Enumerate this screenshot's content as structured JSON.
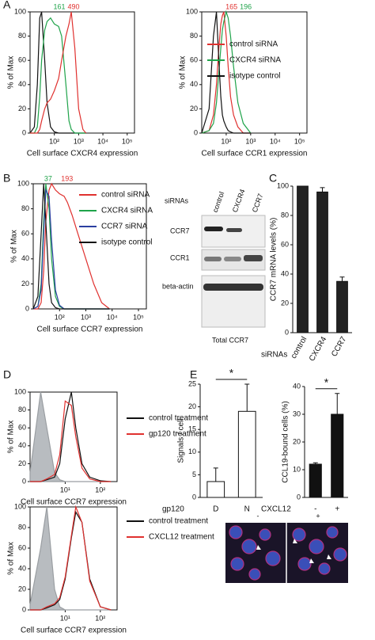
{
  "panels": [
    "A",
    "B",
    "C",
    "D",
    "E"
  ],
  "blot": {
    "group_label": "siRNAs",
    "columns": [
      "control",
      "CXCR4",
      "CCR7"
    ],
    "rows": [
      "CCR7",
      "CCR1",
      "beta-actin"
    ],
    "caption": "Total CCR7"
  },
  "micrograph": {
    "columns": [
      "-",
      "+"
    ]
  },
  "chart_data": [
    {
      "type": "line",
      "xscale": "log",
      "x": [
        10,
        15,
        20,
        25,
        30,
        40,
        50,
        70,
        100,
        150,
        200,
        300,
        400,
        500,
        700,
        1000,
        1500,
        2000
      ],
      "xlim": [
        10,
        200000
      ],
      "xticks": [
        {
          "value": 100,
          "label": "10²"
        },
        {
          "value": 1000,
          "label": "10³"
        },
        {
          "value": 10000,
          "label": "10⁴"
        },
        {
          "value": 100000,
          "label": "10⁵"
        }
      ],
      "ylim": [
        0,
        100
      ],
      "yticks": [
        0,
        20,
        40,
        60,
        80,
        100
      ],
      "xlabel": "Cell surface CXCR4 expression",
      "ylabel": "% of Max",
      "legend": false,
      "series": [
        {
          "name": "isotype control",
          "color": "#111111",
          "values": [
            0,
            5,
            40,
            95,
            100,
            60,
            25,
            5,
            1,
            0,
            0,
            0,
            0,
            0,
            0,
            0,
            0,
            0
          ]
        },
        {
          "name": "CXCR4 siRNA",
          "color": "#1fa34a",
          "values": [
            0,
            0,
            5,
            30,
            60,
            85,
            92,
            95,
            90,
            88,
            80,
            40,
            10,
            3,
            0,
            0,
            0,
            0
          ]
        },
        {
          "name": "control siRNA",
          "color": "#e0312f",
          "values": [
            0,
            0,
            0,
            3,
            10,
            20,
            25,
            28,
            35,
            45,
            60,
            80,
            90,
            100,
            70,
            20,
            3,
            0
          ]
        }
      ],
      "annotations": [
        {
          "text": "161",
          "color": "#1fa34a"
        },
        {
          "text": "490",
          "color": "#e0312f"
        }
      ]
    },
    {
      "type": "line",
      "xscale": "log",
      "x": [
        10,
        20,
        30,
        40,
        50,
        60,
        70,
        80,
        100,
        120,
        150,
        200,
        300,
        500,
        1000
      ],
      "xlim": [
        10,
        200000
      ],
      "xticks": [
        {
          "value": 100,
          "label": "10²"
        },
        {
          "value": 1000,
          "label": "10³"
        },
        {
          "value": 10000,
          "label": "10⁴"
        },
        {
          "value": 100000,
          "label": "10⁵"
        }
      ],
      "ylim": [
        0,
        100
      ],
      "yticks": [
        0,
        20,
        40,
        60,
        80,
        100
      ],
      "xlabel": "Cell surface CCR1 expression",
      "ylabel": "% of Max",
      "legend": true,
      "series": [
        {
          "name": "control siRNA",
          "color": "#e0312f",
          "values": [
            0,
            2,
            15,
            40,
            70,
            90,
            97,
            100,
            80,
            55,
            30,
            15,
            5,
            0,
            0
          ]
        },
        {
          "name": "CXCR4 siRNA",
          "color": "#1fa34a",
          "values": [
            0,
            2,
            8,
            25,
            50,
            70,
            85,
            92,
            100,
            95,
            80,
            55,
            25,
            8,
            0
          ]
        },
        {
          "name": "isotype control",
          "color": "#111111",
          "values": [
            0,
            20,
            80,
            100,
            60,
            30,
            15,
            10,
            5,
            2,
            1,
            0,
            0,
            0,
            0
          ]
        }
      ],
      "annotations": [
        {
          "text": "165",
          "color": "#e0312f"
        },
        {
          "text": "196",
          "color": "#1fa34a"
        }
      ]
    },
    {
      "type": "line",
      "xscale": "log",
      "x": [
        10,
        15,
        20,
        25,
        30,
        40,
        50,
        70,
        100,
        150,
        200,
        300,
        500,
        1000,
        2000,
        4000,
        8000
      ],
      "xlim": [
        10,
        200000
      ],
      "xticks": [
        {
          "value": 100,
          "label": "10²"
        },
        {
          "value": 1000,
          "label": "10³"
        },
        {
          "value": 10000,
          "label": "10⁴"
        },
        {
          "value": 100000,
          "label": "10⁵"
        }
      ],
      "ylim": [
        0,
        100
      ],
      "yticks": [
        0,
        20,
        40,
        60,
        80,
        100
      ],
      "xlabel": "Cell surface CCR7 expression",
      "ylabel": "% of Max",
      "legend": true,
      "series": [
        {
          "name": "control siRNA",
          "color": "#e0312f",
          "values": [
            0,
            0,
            5,
            30,
            70,
            95,
            100,
            95,
            92,
            90,
            85,
            75,
            60,
            40,
            20,
            5,
            0
          ]
        },
        {
          "name": "CXCR4 siRNA",
          "color": "#1fa34a",
          "values": [
            0,
            2,
            20,
            70,
            100,
            80,
            40,
            10,
            2,
            0,
            0,
            0,
            0,
            0,
            0,
            0,
            0
          ]
        },
        {
          "name": "CCR7 siRNA",
          "color": "#2b3fa0",
          "values": [
            0,
            2,
            15,
            60,
            95,
            90,
            55,
            15,
            3,
            0,
            0,
            0,
            0,
            0,
            0,
            0,
            0
          ]
        },
        {
          "name": "isotype control",
          "color": "#111111",
          "values": [
            0,
            10,
            60,
            100,
            70,
            20,
            5,
            1,
            0,
            0,
            0,
            0,
            0,
            0,
            0,
            0,
            0
          ]
        }
      ],
      "annotations": [
        {
          "text": "37",
          "color": "#1fa34a"
        },
        {
          "text": "193",
          "color": "#e0312f"
        }
      ]
    },
    {
      "type": "bar",
      "categories": [
        "control",
        "CXCR4",
        "CCR7"
      ],
      "values": [
        100,
        96,
        35
      ],
      "errors": [
        0,
        3,
        3
      ],
      "color": "#222222",
      "ylim": [
        0,
        100
      ],
      "yticks": [
        0,
        20,
        40,
        60,
        80,
        100
      ],
      "ylabel": "CCR7 mRNA levels (%)",
      "group_label": "siRNAs",
      "rotate_categories": true
    },
    {
      "type": "line",
      "xscale": "log",
      "x": [
        1,
        2,
        3,
        5,
        7,
        10,
        15,
        20,
        30,
        50,
        100,
        200
      ],
      "xlim": [
        1,
        300
      ],
      "xticks": [
        {
          "value": 10,
          "label": "10¹"
        },
        {
          "value": 100,
          "label": "10²"
        }
      ],
      "ylim": [
        0,
        100
      ],
      "yticks": [
        0,
        20,
        40,
        60,
        80,
        100
      ],
      "xlabel": "Cell surface CCR7 expression",
      "ylabel": "% of Max",
      "legend": true,
      "series": [
        {
          "fill": "#b8bcc0",
          "color": "#9a9ea2",
          "values": [
            10,
            100,
            60,
            10,
            2,
            0,
            0,
            0,
            0,
            0,
            0,
            0
          ]
        },
        {
          "name": "control treatment",
          "color": "#111111",
          "values": [
            0,
            0,
            2,
            5,
            20,
            70,
            100,
            60,
            20,
            5,
            1,
            0
          ]
        },
        {
          "name": "gp120 treatment",
          "color": "#e0312f",
          "values": [
            0,
            0,
            3,
            8,
            30,
            90,
            85,
            50,
            15,
            3,
            0,
            0
          ]
        }
      ]
    },
    {
      "type": "line",
      "xscale": "log",
      "x": [
        1,
        2,
        3,
        5,
        7,
        10,
        15,
        20,
        30,
        50,
        100,
        200
      ],
      "xlim": [
        1,
        300
      ],
      "xticks": [
        {
          "value": 10,
          "label": "10¹"
        },
        {
          "value": 100,
          "label": "10²"
        }
      ],
      "ylim": [
        0,
        100
      ],
      "yticks": [
        0,
        20,
        40,
        60,
        80,
        100
      ],
      "xlabel": "Cell surface CCR7 expression",
      "ylabel": "% of Max",
      "legend": true,
      "series": [
        {
          "fill": "#b8bcc0",
          "color": "#9a9ea2",
          "values": [
            5,
            60,
            100,
            20,
            3,
            0,
            0,
            0,
            0,
            0,
            0,
            0
          ]
        },
        {
          "name": "control treatment",
          "color": "#111111",
          "values": [
            0,
            0,
            2,
            5,
            10,
            30,
            70,
            95,
            85,
            30,
            3,
            0
          ]
        },
        {
          "name": "CXCL12 treatment",
          "color": "#e0312f",
          "values": [
            0,
            0,
            3,
            6,
            12,
            32,
            72,
            100,
            85,
            28,
            3,
            0
          ]
        }
      ]
    },
    {
      "type": "bar",
      "categories": [
        "D",
        "N"
      ],
      "values": [
        3.5,
        19
      ],
      "errors": [
        3,
        6
      ],
      "color": "#ffffff",
      "ylim": [
        0,
        25
      ],
      "yticks": [
        0,
        5,
        10,
        15,
        20,
        25
      ],
      "ylabel": "Signals / cell",
      "group_label": "gp120",
      "significance": "*"
    },
    {
      "type": "bar",
      "categories": [
        "-",
        "+"
      ],
      "values": [
        12,
        30
      ],
      "errors": [
        0.5,
        7.5
      ],
      "color": "#111111",
      "ylim": [
        0,
        40
      ],
      "yticks": [
        0,
        10,
        20,
        30,
        40
      ],
      "ylabel": "CCL19-bound cells (%)",
      "group_label": "CXCL12",
      "significance": "*"
    }
  ]
}
